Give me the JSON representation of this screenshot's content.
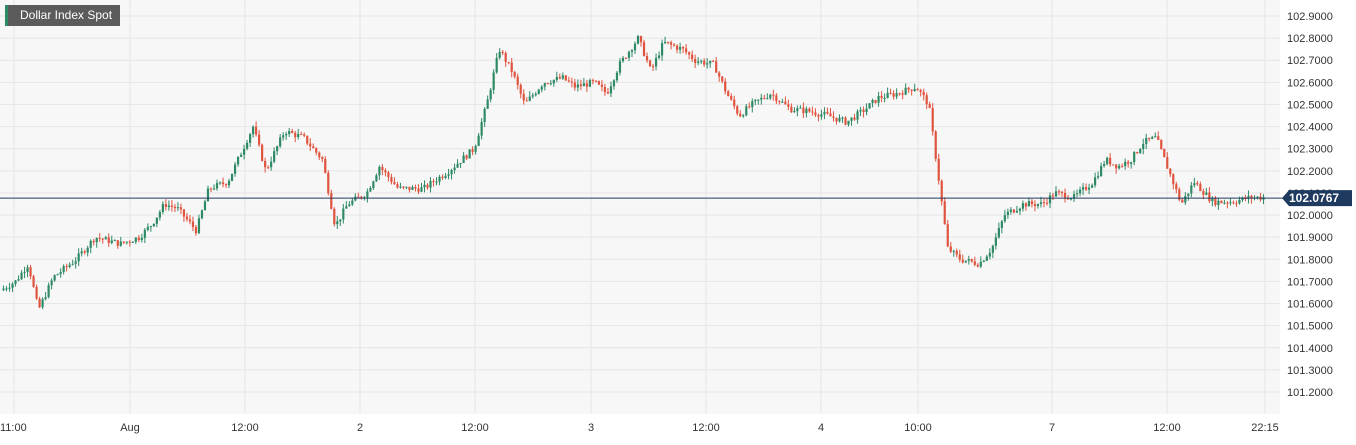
{
  "chart_data": {
    "type": "candlestick",
    "title": "Dollar Index Spot",
    "last_price": "102.0767",
    "ylim": [
      101.1,
      102.95
    ],
    "y_ticks": [
      "102.9000",
      "102.8000",
      "102.7000",
      "102.6000",
      "102.5000",
      "102.4000",
      "102.3000",
      "102.2000",
      "102.1000",
      "102.0000",
      "101.9000",
      "101.8000",
      "101.7000",
      "101.6000",
      "101.5000",
      "101.4000",
      "101.3000",
      "101.2000"
    ],
    "x_ticks": [
      "11:00",
      "Aug",
      "12:00",
      "2",
      "12:00",
      "3",
      "12:00",
      "4",
      "10:00",
      "7",
      "12:00",
      "22:15"
    ],
    "colors": {
      "up": "#2e8a65",
      "down": "#e0533e",
      "price_line": "#1f3a5f",
      "label_bg": "#1f3a5f",
      "grid": "#e6e6e6",
      "plot_bg": "#f7f7f7"
    },
    "price_path": [
      [
        0,
        101.66
      ],
      [
        0.012,
        101.7
      ],
      [
        0.022,
        101.78
      ],
      [
        0.03,
        101.57
      ],
      [
        0.042,
        101.72
      ],
      [
        0.06,
        101.8
      ],
      [
        0.075,
        101.9
      ],
      [
        0.095,
        101.87
      ],
      [
        0.11,
        101.9
      ],
      [
        0.12,
        101.96
      ],
      [
        0.13,
        102.05
      ],
      [
        0.14,
        102.03
      ],
      [
        0.155,
        101.93
      ],
      [
        0.165,
        102.12
      ],
      [
        0.18,
        102.15
      ],
      [
        0.2,
        102.4
      ],
      [
        0.21,
        102.2
      ],
      [
        0.225,
        102.38
      ],
      [
        0.24,
        102.35
      ],
      [
        0.255,
        102.25
      ],
      [
        0.265,
        101.95
      ],
      [
        0.275,
        102.05
      ],
      [
        0.29,
        102.1
      ],
      [
        0.3,
        102.22
      ],
      [
        0.315,
        102.12
      ],
      [
        0.335,
        102.12
      ],
      [
        0.355,
        102.2
      ],
      [
        0.365,
        102.25
      ],
      [
        0.375,
        102.3
      ],
      [
        0.385,
        102.5
      ],
      [
        0.395,
        102.75
      ],
      [
        0.405,
        102.65
      ],
      [
        0.415,
        102.5
      ],
      [
        0.43,
        102.6
      ],
      [
        0.445,
        102.62
      ],
      [
        0.455,
        102.58
      ],
      [
        0.47,
        102.6
      ],
      [
        0.48,
        102.55
      ],
      [
        0.49,
        102.68
      ],
      [
        0.505,
        102.8
      ],
      [
        0.515,
        102.65
      ],
      [
        0.525,
        102.78
      ],
      [
        0.54,
        102.75
      ],
      [
        0.55,
        102.7
      ],
      [
        0.565,
        102.68
      ],
      [
        0.575,
        102.55
      ],
      [
        0.585,
        102.45
      ],
      [
        0.595,
        102.5
      ],
      [
        0.61,
        102.55
      ],
      [
        0.625,
        102.48
      ],
      [
        0.64,
        102.47
      ],
      [
        0.655,
        102.45
      ],
      [
        0.67,
        102.42
      ],
      [
        0.685,
        102.48
      ],
      [
        0.695,
        102.53
      ],
      [
        0.71,
        102.55
      ],
      [
        0.725,
        102.58
      ],
      [
        0.735,
        102.5
      ],
      [
        0.742,
        102.2
      ],
      [
        0.75,
        101.85
      ],
      [
        0.76,
        101.8
      ],
      [
        0.775,
        101.78
      ],
      [
        0.785,
        101.85
      ],
      [
        0.795,
        102.0
      ],
      [
        0.81,
        102.05
      ],
      [
        0.825,
        102.05
      ],
      [
        0.835,
        102.1
      ],
      [
        0.85,
        102.08
      ],
      [
        0.865,
        102.15
      ],
      [
        0.875,
        102.25
      ],
      [
        0.885,
        102.22
      ],
      [
        0.895,
        102.25
      ],
      [
        0.905,
        102.33
      ],
      [
        0.915,
        102.35
      ],
      [
        0.925,
        102.2
      ],
      [
        0.935,
        102.05
      ],
      [
        0.945,
        102.15
      ],
      [
        0.96,
        102.06
      ],
      [
        0.975,
        102.06
      ],
      [
        0.99,
        102.08
      ]
    ]
  }
}
